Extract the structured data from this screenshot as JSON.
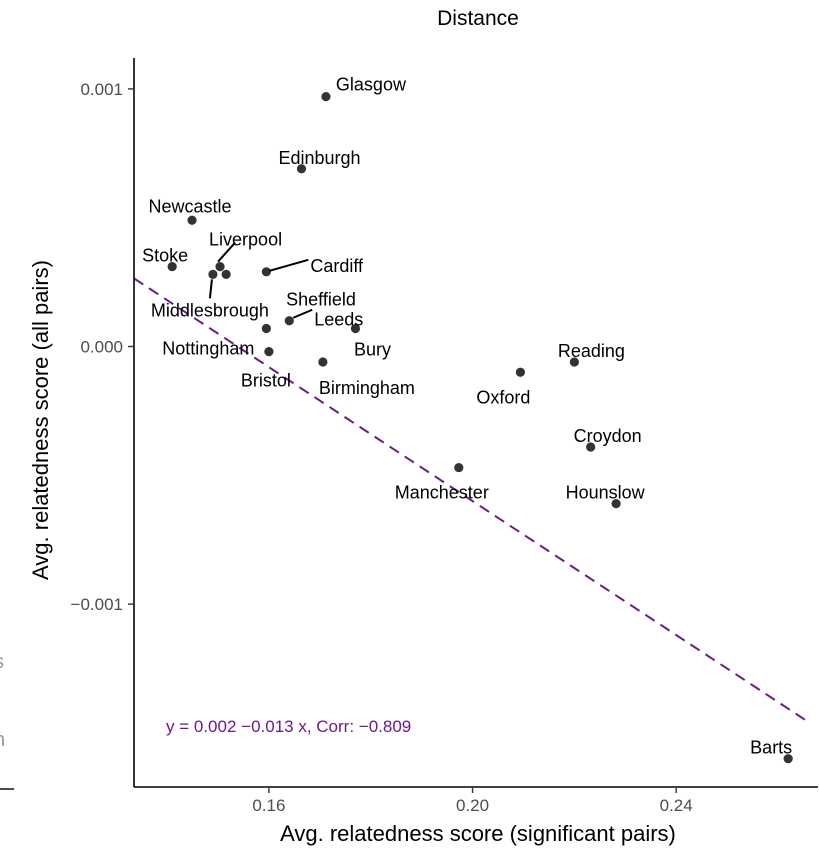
{
  "chart_data": {
    "type": "scatter",
    "title": "Distance",
    "xlabel": "Avg. relatedness score (significant pairs)",
    "ylabel": "Avg. relatedness score (all pairs)",
    "xlim": [
      0.1335,
      0.2655
    ],
    "ylim": [
      -0.00171,
      0.00112
    ],
    "xticks": [
      0.16,
      0.2,
      0.24
    ],
    "xtick_labels": [
      "0.16",
      "0.20",
      "0.24"
    ],
    "yticks": [
      0.001,
      0.0,
      -0.001
    ],
    "ytick_labels": [
      "0.001",
      "0.000",
      "−0.001"
    ],
    "grid": false,
    "points": [
      {
        "label": "Glasgow",
        "x": 0.1712,
        "y": 0.00097
      },
      {
        "label": "Edinburgh",
        "x": 0.1664,
        "y": 0.00069
      },
      {
        "label": "Newcastle",
        "x": 0.1449,
        "y": 0.00049
      },
      {
        "label": "Liverpool",
        "x": 0.1504,
        "y": 0.00031
      },
      {
        "label": "Stoke",
        "x": 0.141,
        "y": 0.00031
      },
      {
        "label": "Cardiff",
        "x": 0.1595,
        "y": 0.00029
      },
      {
        "label": "Middlesbrough",
        "x": 0.149,
        "y": 0.00028
      },
      {
        "label": "Sheffield",
        "x": 0.1516,
        "y": 0.00028
      },
      {
        "label": "Leeds",
        "x": 0.164,
        "y": 0.0001
      },
      {
        "label": "Nottingham",
        "x": 0.1595,
        "y": 7e-05
      },
      {
        "label": "Bury",
        "x": 0.177,
        "y": 7e-05
      },
      {
        "label": "Bristol",
        "x": 0.16,
        "y": -2e-05
      },
      {
        "label": "Birmingham",
        "x": 0.1706,
        "y": -6e-05
      },
      {
        "label": "Reading",
        "x": 0.22,
        "y": -6e-05
      },
      {
        "label": "Oxford",
        "x": 0.2094,
        "y": -0.0001
      },
      {
        "label": "Croydon",
        "x": 0.2232,
        "y": -0.00039
      },
      {
        "label": "Manchester",
        "x": 0.1973,
        "y": -0.00047
      },
      {
        "label": "Hounslow",
        "x": 0.2282,
        "y": -0.00061
      },
      {
        "label": "Barts",
        "x": 0.262,
        "y": -0.0016
      }
    ],
    "fit_line": {
      "intercept": 0.002,
      "slope": -0.013,
      "color": "#6a1b8a",
      "style": "dashed"
    },
    "annotation": "y = 0.002 −0.013 x, Corr:  −0.809",
    "annotation_color": "#6a1b8a",
    "point_color": "#333333"
  },
  "left_edge_fragments": [
    "s",
    "n"
  ]
}
